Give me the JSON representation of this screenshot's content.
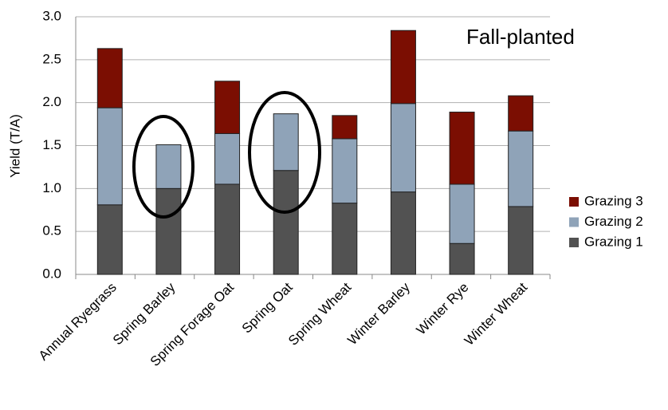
{
  "chart_data": {
    "type": "stacked_bar",
    "annotation": "Fall-planted",
    "y_label": "Yield (T/A)",
    "categories": [
      "Annual Ryegrass",
      "Spring Barley",
      "Spring Forage Oat",
      "Spring Oat",
      "Spring Wheat",
      "Winter Barley",
      "Winter Rye",
      "Winter Wheat"
    ],
    "series": [
      {
        "name": "Grazing 1",
        "color": "#525252",
        "values": [
          0.81,
          1.0,
          1.05,
          1.21,
          0.83,
          0.96,
          0.36,
          0.79
        ]
      },
      {
        "name": "Grazing 2",
        "color": "#8fa3b8",
        "values": [
          1.13,
          0.51,
          0.59,
          0.66,
          0.75,
          1.03,
          0.69,
          0.88
        ]
      },
      {
        "name": "Grazing 3",
        "color": "#7b0e02",
        "values": [
          0.69,
          0,
          0.61,
          0,
          0.27,
          0.85,
          0.84,
          0.41
        ]
      }
    ],
    "ylim": [
      0,
      3
    ],
    "yticks": [
      {
        "value": 0,
        "label": "0.0"
      },
      0.5,
      {
        "value": 1,
        "label": "1.0"
      },
      1.5,
      {
        "value": 2,
        "label": "2.0"
      },
      2.5,
      {
        "value": 3,
        "label": "3.0"
      }
    ],
    "grid": true,
    "legend": "right"
  }
}
